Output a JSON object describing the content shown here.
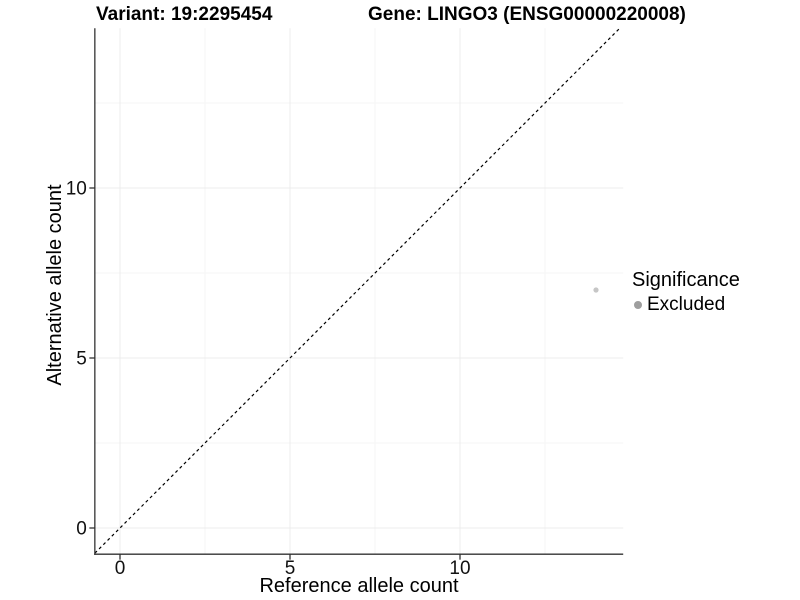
{
  "chart_data": {
    "type": "scatter",
    "title_left": "Variant: 19:2295454",
    "title_right": "Gene: LINGO3 (ENSG00000220008)",
    "xlabel": "Reference allele count",
    "ylabel": "Alternative allele count",
    "x_ticks": [
      0,
      5,
      10
    ],
    "y_ticks": [
      0,
      5,
      10
    ],
    "xlim": [
      -0.74,
      14.8
    ],
    "ylim": [
      -0.77,
      14.7
    ],
    "grid": {
      "major": true,
      "minor": true
    },
    "points": [
      {
        "x": 14,
        "y": 7,
        "series": "Excluded"
      }
    ],
    "identity_line": {
      "slope": 1,
      "intercept": 0,
      "style": "dashed"
    },
    "legend": {
      "title": "Significance",
      "position": "right",
      "entries": [
        {
          "label": "Excluded",
          "color": "#9e9e9e"
        }
      ]
    },
    "colors": {
      "point": "#c6c6c6",
      "legend_point": "#9e9e9e",
      "axis_line": "#333333",
      "tick_label": "#111111",
      "grid_major": "#ececec",
      "grid_minor": "#f5f5f5",
      "identity_line": "#000000",
      "background": "#ffffff"
    }
  }
}
